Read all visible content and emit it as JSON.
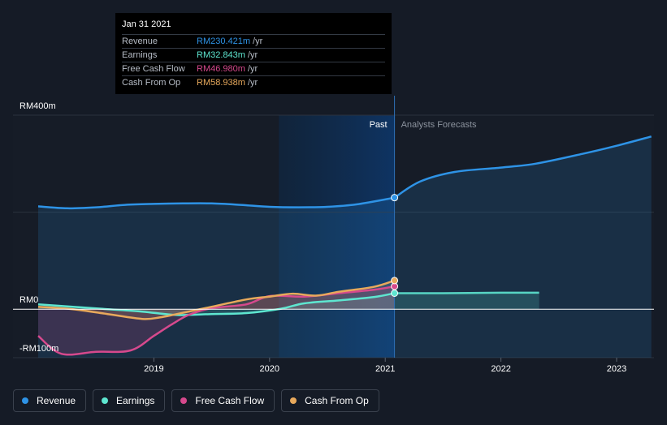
{
  "tooltip": {
    "date": "Jan 31 2021",
    "rows": [
      {
        "label": "Revenue",
        "value": "RM230.421m",
        "unit": "/yr",
        "color": "#2e93e6"
      },
      {
        "label": "Earnings",
        "value": "RM32.843m",
        "unit": "/yr",
        "color": "#5ee6d0"
      },
      {
        "label": "Free Cash Flow",
        "value": "RM46.980m",
        "unit": "/yr",
        "color": "#d6498d"
      },
      {
        "label": "Cash From Op",
        "value": "RM58.938m",
        "unit": "/yr",
        "color": "#e8a95c"
      }
    ]
  },
  "legend": [
    {
      "label": "Revenue",
      "color": "#2e93e6"
    },
    {
      "label": "Earnings",
      "color": "#5ee6d0"
    },
    {
      "label": "Free Cash Flow",
      "color": "#d6498d"
    },
    {
      "label": "Cash From Op",
      "color": "#e8a95c"
    }
  ],
  "chart_data": {
    "type": "line",
    "title": "",
    "xlabel": "",
    "ylabel": "",
    "ylim": [
      -100,
      400
    ],
    "y_tick_labels": [
      "RM400m",
      "RM0",
      "-RM100m"
    ],
    "x_tick_labels": [
      "2019",
      "2020",
      "2021",
      "2022",
      "2023"
    ],
    "x_ticks": [
      2019,
      2020,
      2021,
      2022,
      2023
    ],
    "xlim": [
      2017.8,
      2023.3
    ],
    "past_label": "Past",
    "forecast_label": "Analysts Forecasts",
    "divider_x": 2021.08,
    "highlight_start": 2020.08,
    "grid": true,
    "series": [
      {
        "name": "Revenue",
        "color": "#2e93e6",
        "x": [
          2018.0,
          2018.25,
          2018.5,
          2018.75,
          2019.0,
          2019.25,
          2019.5,
          2019.75,
          2020.0,
          2020.25,
          2020.5,
          2020.75,
          2021.08
        ],
        "y": [
          212,
          208,
          210,
          215,
          217,
          218,
          218,
          215,
          211,
          210,
          211,
          216,
          230
        ]
      },
      {
        "name": "Revenue forecast",
        "color": "#2e93e6",
        "forecast": true,
        "x": [
          2021.08,
          2021.3,
          2021.6,
          2022.0,
          2022.3,
          2022.7,
          2023.0,
          2023.3
        ],
        "y": [
          230,
          263,
          283,
          292,
          300,
          320,
          337,
          356
        ]
      },
      {
        "name": "Earnings",
        "color": "#5ee6d0",
        "x": [
          2018.0,
          2018.3,
          2018.6,
          2018.9,
          2019.2,
          2019.5,
          2019.8,
          2020.1,
          2020.3,
          2020.6,
          2020.9,
          2021.08
        ],
        "y": [
          10,
          5,
          0,
          -5,
          -12,
          -10,
          -8,
          1,
          12,
          18,
          25,
          33
        ]
      },
      {
        "name": "Earnings forecast",
        "color": "#5ee6d0",
        "forecast": true,
        "x": [
          2021.08,
          2021.5,
          2022.0,
          2022.33
        ],
        "y": [
          33,
          33,
          34,
          34
        ]
      },
      {
        "name": "Free Cash Flow",
        "color": "#d6498d",
        "x": [
          2018.0,
          2018.2,
          2018.5,
          2018.8,
          2019.0,
          2019.15,
          2019.3,
          2019.5,
          2019.8,
          2020.0,
          2020.3,
          2020.6,
          2020.9,
          2021.08
        ],
        "y": [
          -55,
          -92,
          -88,
          -85,
          -55,
          -32,
          -12,
          2,
          10,
          27,
          26,
          33,
          40,
          47
        ]
      },
      {
        "name": "Cash From Op",
        "color": "#e8a95c",
        "x": [
          2018.0,
          2018.3,
          2018.6,
          2018.9,
          2019.05,
          2019.2,
          2019.5,
          2019.8,
          2020.0,
          2020.2,
          2020.4,
          2020.6,
          2020.9,
          2021.08
        ],
        "y": [
          5,
          0,
          -10,
          -20,
          -17,
          -10,
          5,
          20,
          26,
          32,
          28,
          36,
          46,
          59
        ]
      }
    ]
  }
}
